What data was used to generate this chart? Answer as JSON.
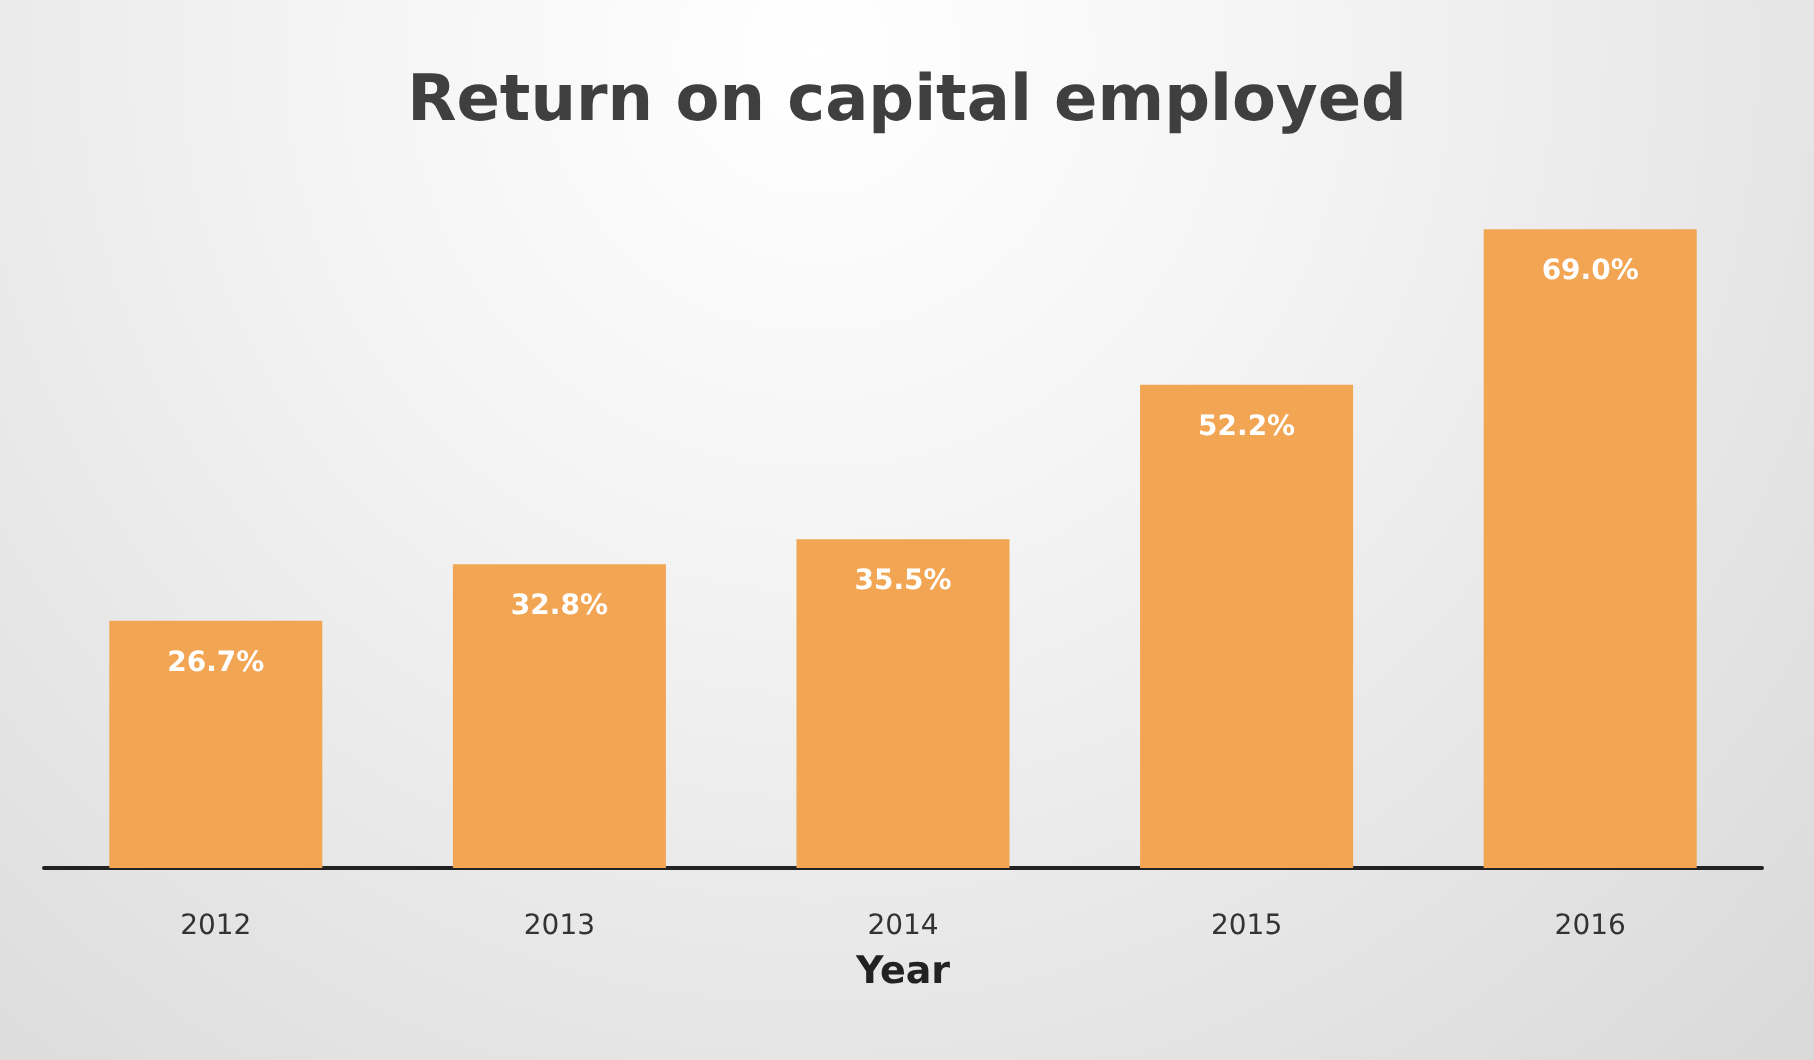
{
  "chart_data": {
    "type": "bar",
    "title": "Return on capital employed",
    "xlabel": "Year",
    "categories": [
      "2012",
      "2013",
      "2014",
      "2015",
      "2016"
    ],
    "values": [
      26.7,
      32.8,
      35.5,
      52.2,
      69.0
    ],
    "value_labels": [
      "26.7%",
      "32.8%",
      "35.5%",
      "52.2%",
      "69.0%"
    ],
    "color": "#f2a553"
  }
}
